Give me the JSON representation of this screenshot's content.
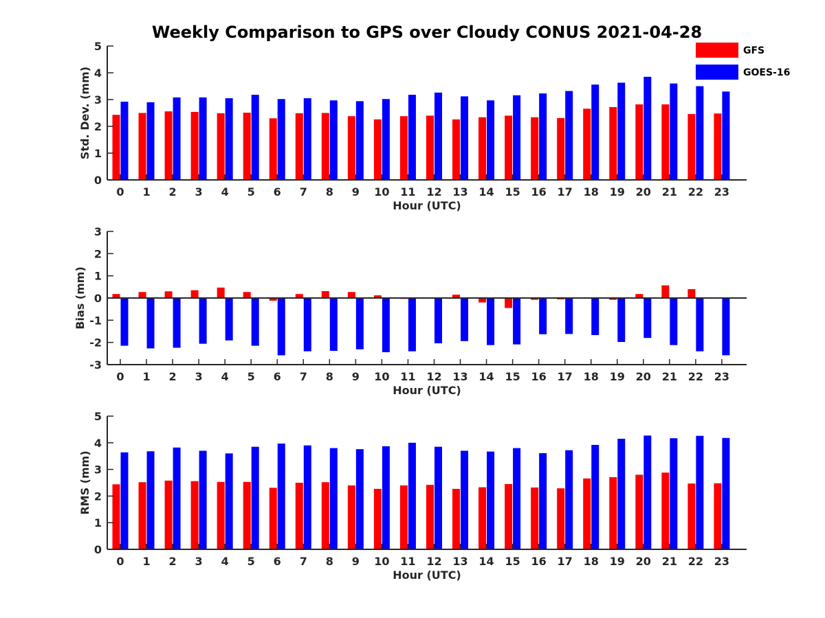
{
  "title": "Weekly Comparison to GPS over Cloudy CONUS 2021-04-28",
  "legend": [
    {
      "name": "GFS",
      "color": "#ff0000"
    },
    {
      "name": "GOES-16",
      "color": "#0000ff"
    }
  ],
  "chart_data": [
    {
      "type": "bar",
      "xlabel": "Hour (UTC)",
      "ylabel": "Std. Dev. (mm)",
      "ylim": [
        0,
        5
      ],
      "yticks": [
        0,
        1,
        2,
        3,
        4,
        5
      ],
      "categories": [
        "0",
        "1",
        "2",
        "3",
        "4",
        "5",
        "6",
        "7",
        "8",
        "9",
        "10",
        "11",
        "12",
        "13",
        "14",
        "15",
        "16",
        "17",
        "18",
        "19",
        "20",
        "21",
        "22",
        "23"
      ],
      "series": [
        {
          "name": "GFS",
          "color": "#ff0000",
          "values": [
            2.43,
            2.5,
            2.56,
            2.54,
            2.49,
            2.51,
            2.3,
            2.49,
            2.5,
            2.38,
            2.26,
            2.38,
            2.4,
            2.26,
            2.34,
            2.4,
            2.34,
            2.31,
            2.66,
            2.72,
            2.82,
            2.82,
            2.46,
            2.48
          ]
        },
        {
          "name": "GOES-16",
          "color": "#0000ff",
          "values": [
            2.92,
            2.9,
            3.08,
            3.08,
            3.05,
            3.18,
            3.02,
            3.05,
            2.97,
            2.94,
            3.02,
            3.18,
            3.26,
            3.12,
            2.97,
            3.16,
            3.23,
            3.32,
            3.56,
            3.63,
            3.85,
            3.6,
            3.5,
            3.3
          ]
        }
      ]
    },
    {
      "type": "bar",
      "xlabel": "Hour (UTC)",
      "ylabel": "Bias (mm)",
      "ylim": [
        -3,
        3
      ],
      "yticks": [
        -3,
        -2,
        -1,
        0,
        1,
        2,
        3
      ],
      "categories": [
        "0",
        "1",
        "2",
        "3",
        "4",
        "5",
        "6",
        "7",
        "8",
        "9",
        "10",
        "11",
        "12",
        "13",
        "14",
        "15",
        "16",
        "17",
        "18",
        "19",
        "20",
        "21",
        "22",
        "23"
      ],
      "series": [
        {
          "name": "GFS",
          "color": "#ff0000",
          "values": [
            0.18,
            0.27,
            0.3,
            0.35,
            0.47,
            0.27,
            -0.12,
            0.18,
            0.31,
            0.27,
            0.12,
            -0.04,
            0.02,
            0.15,
            -0.2,
            -0.45,
            -0.08,
            -0.06,
            -0.03,
            -0.08,
            0.18,
            0.57,
            0.4,
            -0.02
          ]
        },
        {
          "name": "GOES-16",
          "color": "#0000ff",
          "values": [
            -2.15,
            -2.27,
            -2.24,
            -2.06,
            -1.91,
            -2.15,
            -2.58,
            -2.4,
            -2.38,
            -2.31,
            -2.44,
            -2.4,
            -2.04,
            -1.94,
            -2.12,
            -2.09,
            -1.63,
            -1.62,
            -1.67,
            -1.98,
            -1.8,
            -2.12,
            -2.4,
            -2.58
          ]
        }
      ]
    },
    {
      "type": "bar",
      "xlabel": "Hour (UTC)",
      "ylabel": "RMS (mm)",
      "ylim": [
        0,
        5
      ],
      "yticks": [
        0,
        1,
        2,
        3,
        4,
        5
      ],
      "categories": [
        "0",
        "1",
        "2",
        "3",
        "4",
        "5",
        "6",
        "7",
        "8",
        "9",
        "10",
        "11",
        "12",
        "13",
        "14",
        "15",
        "16",
        "17",
        "18",
        "19",
        "20",
        "21",
        "22",
        "23"
      ],
      "series": [
        {
          "name": "GFS",
          "color": "#ff0000",
          "values": [
            2.44,
            2.52,
            2.58,
            2.56,
            2.53,
            2.53,
            2.31,
            2.5,
            2.52,
            2.4,
            2.27,
            2.4,
            2.42,
            2.27,
            2.33,
            2.45,
            2.32,
            2.29,
            2.66,
            2.71,
            2.8,
            2.88,
            2.47,
            2.48
          ]
        },
        {
          "name": "GOES-16",
          "color": "#0000ff",
          "values": [
            3.64,
            3.68,
            3.82,
            3.7,
            3.6,
            3.85,
            3.97,
            3.9,
            3.8,
            3.76,
            3.87,
            4.0,
            3.85,
            3.7,
            3.67,
            3.8,
            3.61,
            3.72,
            3.92,
            4.15,
            4.27,
            4.17,
            4.26,
            4.18
          ]
        }
      ]
    }
  ]
}
